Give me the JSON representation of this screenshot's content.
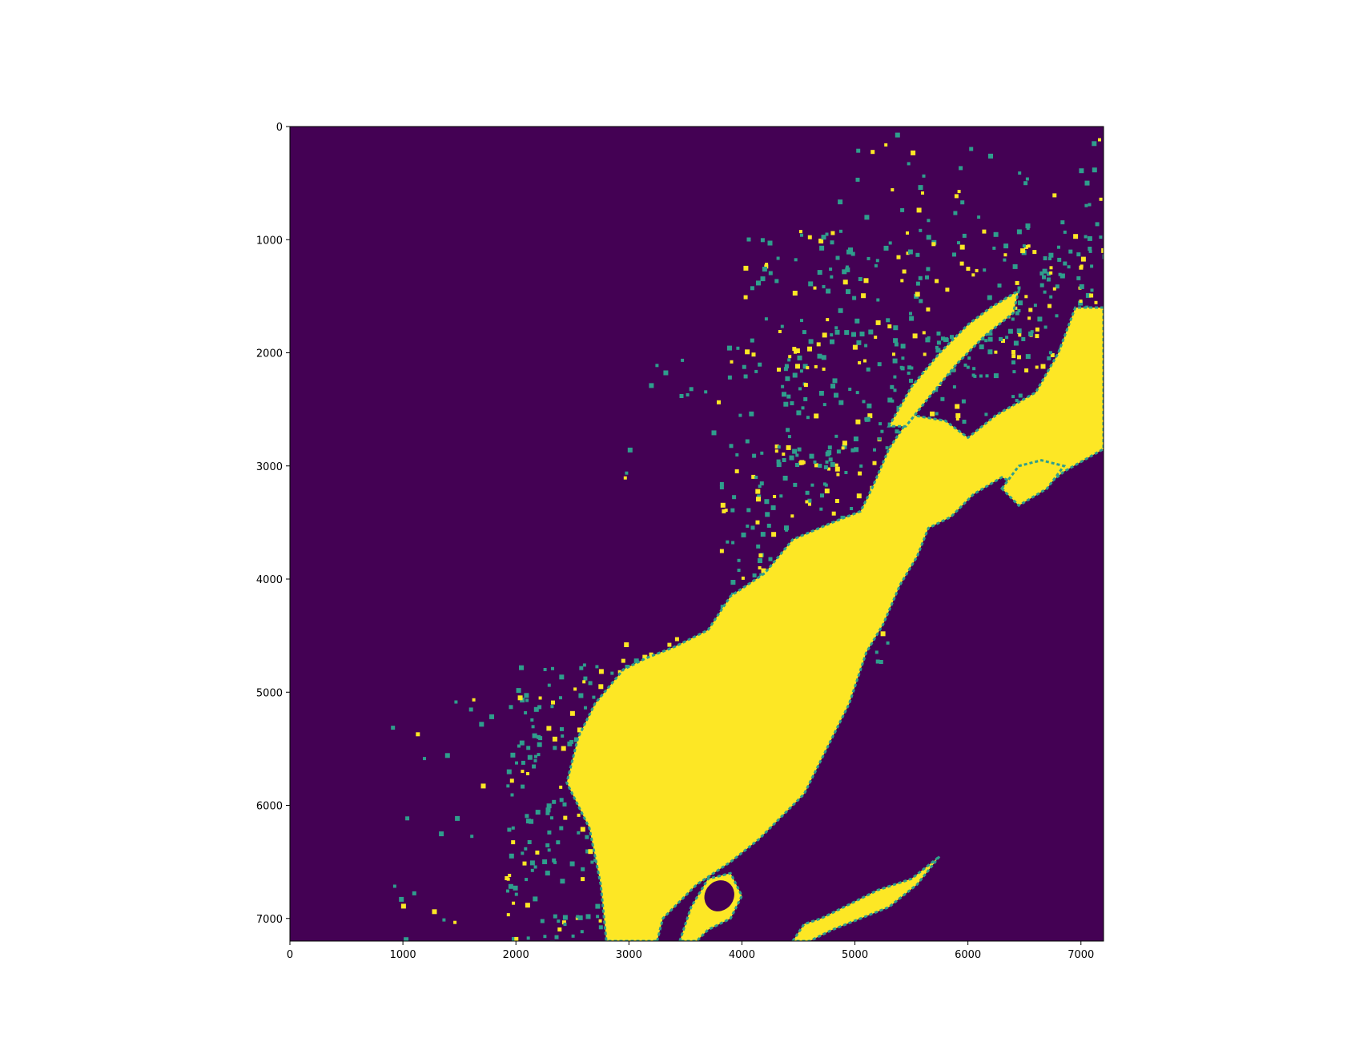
{
  "chart_data": {
    "type": "heatmap",
    "title": "",
    "xlabel": "",
    "ylabel": "",
    "colormap": "viridis",
    "colors": {
      "low": "#440154",
      "mid": "#2f9e8d",
      "high": "#fde725"
    },
    "xlim": [
      0,
      7200
    ],
    "ylim": [
      7200,
      0
    ],
    "y_axis_inverted": true,
    "x_ticks": [
      0,
      1000,
      2000,
      3000,
      4000,
      5000,
      6000,
      7000
    ],
    "y_ticks": [
      0,
      1000,
      2000,
      3000,
      4000,
      5000,
      6000,
      7000
    ],
    "x_tick_labels": [
      "0",
      "1000",
      "2000",
      "3000",
      "4000",
      "5000",
      "6000",
      "7000"
    ],
    "y_tick_labels": [
      "0",
      "1000",
      "2000",
      "3000",
      "4000",
      "5000",
      "6000",
      "7000"
    ],
    "main_region": {
      "value": "high",
      "outline": [
        [
          3250,
          7200
        ],
        [
          3300,
          7000
        ],
        [
          3450,
          6850
        ],
        [
          3600,
          6700
        ],
        [
          3900,
          6500
        ],
        [
          4150,
          6300
        ],
        [
          4400,
          6050
        ],
        [
          4550,
          5900
        ],
        [
          4750,
          5500
        ],
        [
          4950,
          5100
        ],
        [
          5100,
          4650
        ],
        [
          5250,
          4400
        ],
        [
          5400,
          4050
        ],
        [
          5550,
          3800
        ],
        [
          5650,
          3550
        ],
        [
          5850,
          3450
        ],
        [
          6050,
          3250
        ],
        [
          6300,
          3100
        ],
        [
          6600,
          3250
        ],
        [
          6850,
          3050
        ],
        [
          7200,
          2850
        ],
        [
          7200,
          1600
        ],
        [
          6950,
          1600
        ],
        [
          6800,
          2000
        ],
        [
          6600,
          2350
        ],
        [
          6250,
          2550
        ],
        [
          6000,
          2750
        ],
        [
          5800,
          2600
        ],
        [
          5500,
          2550
        ],
        [
          5300,
          2850
        ],
        [
          5150,
          3200
        ],
        [
          5050,
          3400
        ],
        [
          4800,
          3500
        ],
        [
          4450,
          3650
        ],
        [
          4200,
          3950
        ],
        [
          3900,
          4150
        ],
        [
          3700,
          4450
        ],
        [
          3400,
          4600
        ],
        [
          3150,
          4700
        ],
        [
          2950,
          4800
        ],
        [
          2700,
          5100
        ],
        [
          2550,
          5400
        ],
        [
          2450,
          5800
        ],
        [
          2650,
          6200
        ],
        [
          2750,
          6700
        ],
        [
          2800,
          7200
        ]
      ]
    },
    "secondary_regions": [
      {
        "value": "high",
        "outline": [
          [
            3450,
            7200
          ],
          [
            3550,
            6900
          ],
          [
            3700,
            6650
          ],
          [
            3900,
            6600
          ],
          [
            4000,
            6800
          ],
          [
            3900,
            7000
          ],
          [
            3700,
            7100
          ],
          [
            3600,
            7200
          ]
        ]
      },
      {
        "value": "high",
        "outline": [
          [
            4450,
            7200
          ],
          [
            4550,
            7050
          ],
          [
            4700,
            7000
          ],
          [
            5000,
            6850
          ],
          [
            5200,
            6750
          ],
          [
            5500,
            6650
          ],
          [
            5750,
            6450
          ],
          [
            5550,
            6700
          ],
          [
            5300,
            6900
          ],
          [
            5050,
            7000
          ],
          [
            4800,
            7100
          ],
          [
            4600,
            7200
          ]
        ]
      },
      {
        "value": "high",
        "outline": [
          [
            5300,
            2650
          ],
          [
            5500,
            2300
          ],
          [
            5750,
            2000
          ],
          [
            6000,
            1750
          ],
          [
            6200,
            1600
          ],
          [
            6450,
            1450
          ],
          [
            6400,
            1650
          ],
          [
            6150,
            1850
          ],
          [
            5900,
            2100
          ],
          [
            5650,
            2400
          ],
          [
            5450,
            2650
          ]
        ]
      },
      {
        "value": "high",
        "outline": [
          [
            6300,
            3200
          ],
          [
            6450,
            3000
          ],
          [
            6650,
            2950
          ],
          [
            6850,
            3000
          ],
          [
            6700,
            3200
          ],
          [
            6450,
            3350
          ]
        ]
      }
    ],
    "scatter_zones": [
      {
        "value": "mid",
        "x": [
          1900,
          3000
        ],
        "y": [
          4700,
          7200
        ],
        "density": 0.55
      },
      {
        "value": "mid",
        "x": [
          2900,
          4100
        ],
        "y": [
          4500,
          5300
        ],
        "density": 0.5
      },
      {
        "value": "mid",
        "x": [
          3800,
          5300
        ],
        "y": [
          2800,
          4800
        ],
        "density": 0.45
      },
      {
        "value": "mid",
        "x": [
          4300,
          6300
        ],
        "y": [
          1800,
          3000
        ],
        "density": 0.45
      },
      {
        "value": "mid",
        "x": [
          4000,
          7200
        ],
        "y": [
          900,
          2200
        ],
        "density": 0.35
      },
      {
        "value": "mid",
        "x": [
          4800,
          7200
        ],
        "y": [
          0,
          1000
        ],
        "density": 0.12
      },
      {
        "value": "mid",
        "x": [
          2900,
          4100
        ],
        "y": [
          1800,
          3200
        ],
        "density": 0.1
      },
      {
        "value": "mid",
        "x": [
          800,
          2000
        ],
        "y": [
          5000,
          7200
        ],
        "density": 0.06
      },
      {
        "value": "mid",
        "x": [
          6300,
          7200
        ],
        "y": [
          1000,
          2600
        ],
        "density": 0.4
      }
    ]
  }
}
